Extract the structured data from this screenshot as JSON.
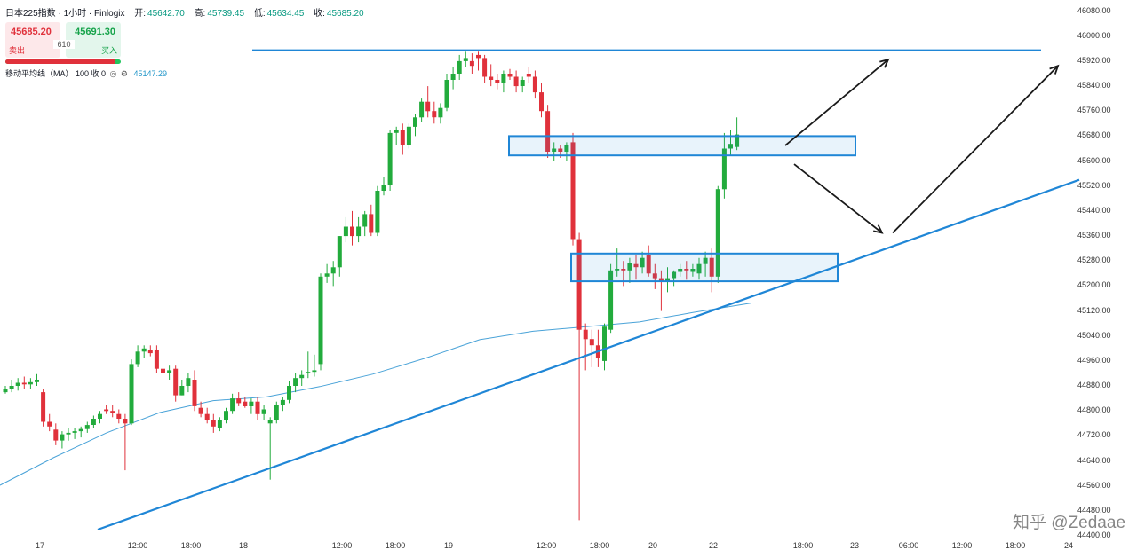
{
  "header": {
    "symbol": "日本225指数 · 1小时 · Finlogix",
    "open_label": "开:",
    "open": "45642.70",
    "high_label": "高:",
    "high": "45739.45",
    "low_label": "低:",
    "low": "45634.45",
    "close_label": "收:",
    "close": "45685.20"
  },
  "trade": {
    "sell_price": "45685.20",
    "buy_price": "45691.30",
    "sell_label": "卖出",
    "buy_label": "买入",
    "spread": "610"
  },
  "indicator": {
    "label": "移动平均线（MA） 100 收 0",
    "value": "45147.29"
  },
  "watermark": "知乎 @Zedaae",
  "colors": {
    "up": "#22ab3c",
    "down": "#e0313b",
    "ma": "#4aa3d8",
    "trendline": "#1f86d6",
    "zone": "#1f86d6",
    "arrow": "#1a1a1a"
  },
  "chart_data": {
    "type": "candlestick",
    "ylim": [
      44420,
      46110
    ],
    "y_ticks": [
      "46080.00",
      "46000.00",
      "45920.00",
      "45840.00",
      "45760.00",
      "45680.00",
      "45600.00",
      "45520.00",
      "45440.00",
      "45360.00",
      "45280.00",
      "45200.00",
      "45120.00",
      "45040.00",
      "44960.00",
      "44880.00",
      "44800.00",
      "44720.00",
      "44640.00",
      "44560.00",
      "44480.00",
      "44400.00"
    ],
    "x_ticks": [
      "17",
      "12:00",
      "18:00",
      "18",
      "12:00",
      "18:00",
      "19",
      "12:00",
      "18:00",
      "20",
      "22",
      "18:00",
      "23",
      "06:00",
      "12:00",
      "18:00",
      "24"
    ],
    "candles": [
      [
        44860,
        44880,
        44855,
        44870
      ],
      [
        44870,
        44900,
        44860,
        44880
      ],
      [
        44880,
        44905,
        44865,
        44890
      ],
      [
        44890,
        44910,
        44870,
        44885
      ],
      [
        44885,
        44905,
        44870,
        44892
      ],
      [
        44892,
        44918,
        44880,
        44900
      ],
      [
        44860,
        44870,
        44750,
        44765
      ],
      [
        44765,
        44790,
        44735,
        44750
      ],
      [
        44740,
        44760,
        44690,
        44705
      ],
      [
        44705,
        44735,
        44680,
        44725
      ],
      [
        44725,
        44745,
        44705,
        44730
      ],
      [
        44730,
        44745,
        44710,
        44735
      ],
      [
        44735,
        44750,
        44715,
        44742
      ],
      [
        44742,
        44765,
        44730,
        44755
      ],
      [
        44755,
        44785,
        44745,
        44775
      ],
      [
        44775,
        44800,
        44760,
        44790
      ],
      [
        44805,
        44820,
        44790,
        44800
      ],
      [
        44800,
        44820,
        44780,
        44795
      ],
      [
        44790,
        44805,
        44760,
        44775
      ],
      [
        44775,
        44790,
        44610,
        44760
      ],
      [
        44760,
        44965,
        44755,
        44950
      ],
      [
        44950,
        45010,
        44940,
        44990
      ],
      [
        44990,
        45010,
        44970,
        45000
      ],
      [
        44995,
        45010,
        44975,
        44985
      ],
      [
        44995,
        45010,
        44920,
        44935
      ],
      [
        44935,
        44955,
        44910,
        44920
      ],
      [
        44920,
        44945,
        44900,
        44930
      ],
      [
        44935,
        44945,
        44830,
        44850
      ],
      [
        44850,
        44900,
        44850,
        44880
      ],
      [
        44880,
        44920,
        44860,
        44905
      ],
      [
        44900,
        44930,
        44800,
        44815
      ],
      [
        44810,
        44830,
        44780,
        44790
      ],
      [
        44790,
        44810,
        44760,
        44770
      ],
      [
        44770,
        44790,
        44730,
        44750
      ],
      [
        44745,
        44780,
        44735,
        44770
      ],
      [
        44770,
        44810,
        44760,
        44800
      ],
      [
        44800,
        44855,
        44790,
        44840
      ],
      [
        44840,
        44860,
        44815,
        44825
      ],
      [
        44830,
        44845,
        44810,
        44815
      ],
      [
        44815,
        44840,
        44790,
        44830
      ],
      [
        44830,
        44845,
        44770,
        44790
      ],
      [
        44790,
        44820,
        44770,
        44805
      ],
      [
        44760,
        44780,
        44580,
        44770
      ],
      [
        44770,
        44830,
        44760,
        44820
      ],
      [
        44820,
        44845,
        44800,
        44835
      ],
      [
        44835,
        44895,
        44825,
        44880
      ],
      [
        44880,
        44920,
        44860,
        44905
      ],
      [
        44905,
        44930,
        44880,
        44915
      ],
      [
        44920,
        44990,
        44905,
        44925
      ],
      [
        44925,
        44980,
        44910,
        44930
      ],
      [
        44950,
        45240,
        44930,
        45230
      ],
      [
        45230,
        45270,
        45210,
        45240
      ],
      [
        45240,
        45280,
        45200,
        45260
      ],
      [
        45260,
        45360,
        45230,
        45360
      ],
      [
        45360,
        45420,
        45340,
        45390
      ],
      [
        45390,
        45440,
        45330,
        45360
      ],
      [
        45360,
        45420,
        45340,
        45390
      ],
      [
        45390,
        45440,
        45360,
        45430
      ],
      [
        45430,
        45460,
        45360,
        45370
      ],
      [
        45370,
        45520,
        45360,
        45505
      ],
      [
        45505,
        45550,
        45490,
        45525
      ],
      [
        45525,
        45700,
        45505,
        45690
      ],
      [
        45690,
        45710,
        45650,
        45700
      ],
      [
        45700,
        45720,
        45620,
        45650
      ],
      [
        45650,
        45720,
        45640,
        45710
      ],
      [
        45710,
        45750,
        45680,
        45740
      ],
      [
        45740,
        45800,
        45725,
        45790
      ],
      [
        45790,
        45840,
        45740,
        45760
      ],
      [
        45760,
        45790,
        45720,
        45740
      ],
      [
        45740,
        45785,
        45720,
        45770
      ],
      [
        45770,
        45880,
        45760,
        45860
      ],
      [
        45860,
        45900,
        45830,
        45880
      ],
      [
        45880,
        45940,
        45860,
        45920
      ],
      [
        45920,
        45950,
        45900,
        45930
      ],
      [
        45920,
        45945,
        45880,
        45905
      ],
      [
        45940,
        45950,
        45890,
        45930
      ],
      [
        45930,
        45940,
        45850,
        45870
      ],
      [
        45870,
        45910,
        45840,
        45860
      ],
      [
        45860,
        45880,
        45830,
        45850
      ],
      [
        45850,
        45890,
        45820,
        45880
      ],
      [
        45880,
        45895,
        45860,
        45870
      ],
      [
        45870,
        45890,
        45820,
        45840
      ],
      [
        45840,
        45870,
        45820,
        45860
      ],
      [
        45880,
        45900,
        45850,
        45870
      ],
      [
        45870,
        45890,
        45800,
        45820
      ],
      [
        45820,
        45850,
        45740,
        45760
      ],
      [
        45760,
        45780,
        45610,
        45630
      ],
      [
        45630,
        45660,
        45600,
        45640
      ],
      [
        45640,
        45650,
        45610,
        45630
      ],
      [
        45630,
        45660,
        45600,
        45650
      ],
      [
        45660,
        45690,
        45330,
        45350
      ],
      [
        45350,
        45370,
        44450,
        45060
      ],
      [
        45060,
        45080,
        44930,
        45030
      ],
      [
        45030,
        45060,
        44940,
        45010
      ],
      [
        45010,
        45060,
        44940,
        44970
      ],
      [
        44960,
        45080,
        44930,
        45070
      ],
      [
        45060,
        45270,
        45050,
        45250
      ],
      [
        45250,
        45320,
        45230,
        45255
      ],
      [
        45255,
        45280,
        45200,
        45250
      ],
      [
        45250,
        45290,
        45210,
        45275
      ],
      [
        45270,
        45300,
        45220,
        45260
      ],
      [
        45260,
        45310,
        45240,
        45290
      ],
      [
        45300,
        45330,
        45230,
        45240
      ],
      [
        45240,
        45270,
        45190,
        45225
      ],
      [
        45225,
        45250,
        45120,
        45215
      ],
      [
        45215,
        45260,
        45180,
        45225
      ],
      [
        45225,
        45250,
        45200,
        45245
      ],
      [
        45245,
        45270,
        45230,
        45255
      ],
      [
        45255,
        45280,
        45220,
        45250
      ],
      [
        45245,
        45270,
        45230,
        45255
      ],
      [
        45240,
        45290,
        45220,
        45270
      ],
      [
        45270,
        45310,
        45230,
        45290
      ],
      [
        45290,
        45320,
        45180,
        45230
      ],
      [
        45230,
        45520,
        45210,
        45510
      ],
      [
        45510,
        45690,
        45480,
        45640
      ],
      [
        45640,
        45700,
        45620,
        45655
      ],
      [
        45645,
        45740,
        45635,
        45685
      ]
    ],
    "ma100": [
      [
        0,
        44562
      ],
      [
        60,
        44650
      ],
      [
        120,
        44730
      ],
      [
        180,
        44795
      ],
      [
        240,
        44833
      ],
      [
        300,
        44845
      ],
      [
        360,
        44878
      ],
      [
        420,
        44918
      ],
      [
        480,
        44970
      ],
      [
        540,
        45028
      ],
      [
        600,
        45055
      ],
      [
        660,
        45070
      ],
      [
        720,
        45085
      ],
      [
        780,
        45115
      ],
      [
        845,
        45145
      ]
    ],
    "trendline": {
      "x": [
        110,
        1215
      ],
      "y": [
        44420,
        45540
      ]
    },
    "resistance": {
      "x": [
        284,
        1172
      ],
      "y": [
        45955,
        45955
      ]
    },
    "zones": [
      {
        "x": [
          573,
          963
        ],
        "y": [
          45680,
          45618
        ]
      },
      {
        "x": [
          643,
          943
        ],
        "y": [
          45304,
          45215
        ]
      }
    ],
    "arrows": [
      {
        "from": [
          884,
          45650
        ],
        "to": [
          1000,
          45925
        ]
      },
      {
        "from": [
          894,
          45590
        ],
        "to": [
          993,
          45370
        ]
      },
      {
        "from": [
          1005,
          45370
        ],
        "to": [
          1191,
          45905
        ]
      }
    ]
  }
}
